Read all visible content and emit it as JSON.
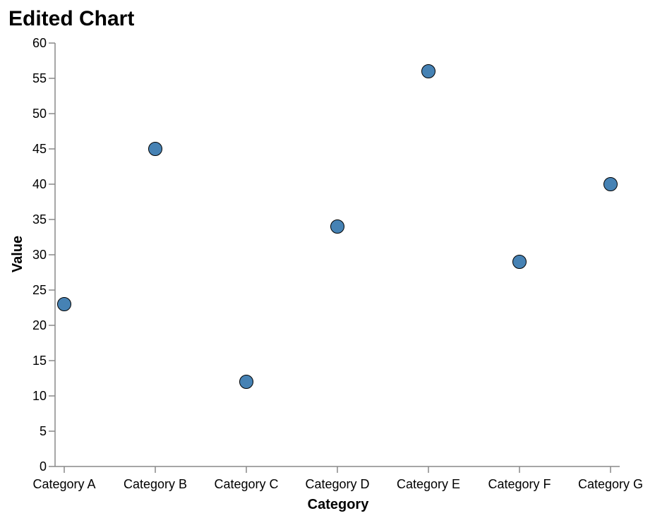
{
  "chart_data": {
    "type": "scatter",
    "title": "Edited Chart",
    "xlabel": "Category",
    "ylabel": "Value",
    "categories": [
      "Category A",
      "Category B",
      "Category C",
      "Category D",
      "Category E",
      "Category F",
      "Category G"
    ],
    "values": [
      23,
      45,
      12,
      34,
      56,
      29,
      40
    ],
    "ylim": [
      0,
      60
    ],
    "yticks": [
      0,
      5,
      10,
      15,
      20,
      25,
      30,
      35,
      40,
      45,
      50,
      55,
      60
    ],
    "grid": false,
    "point_color": "#4682b4"
  }
}
